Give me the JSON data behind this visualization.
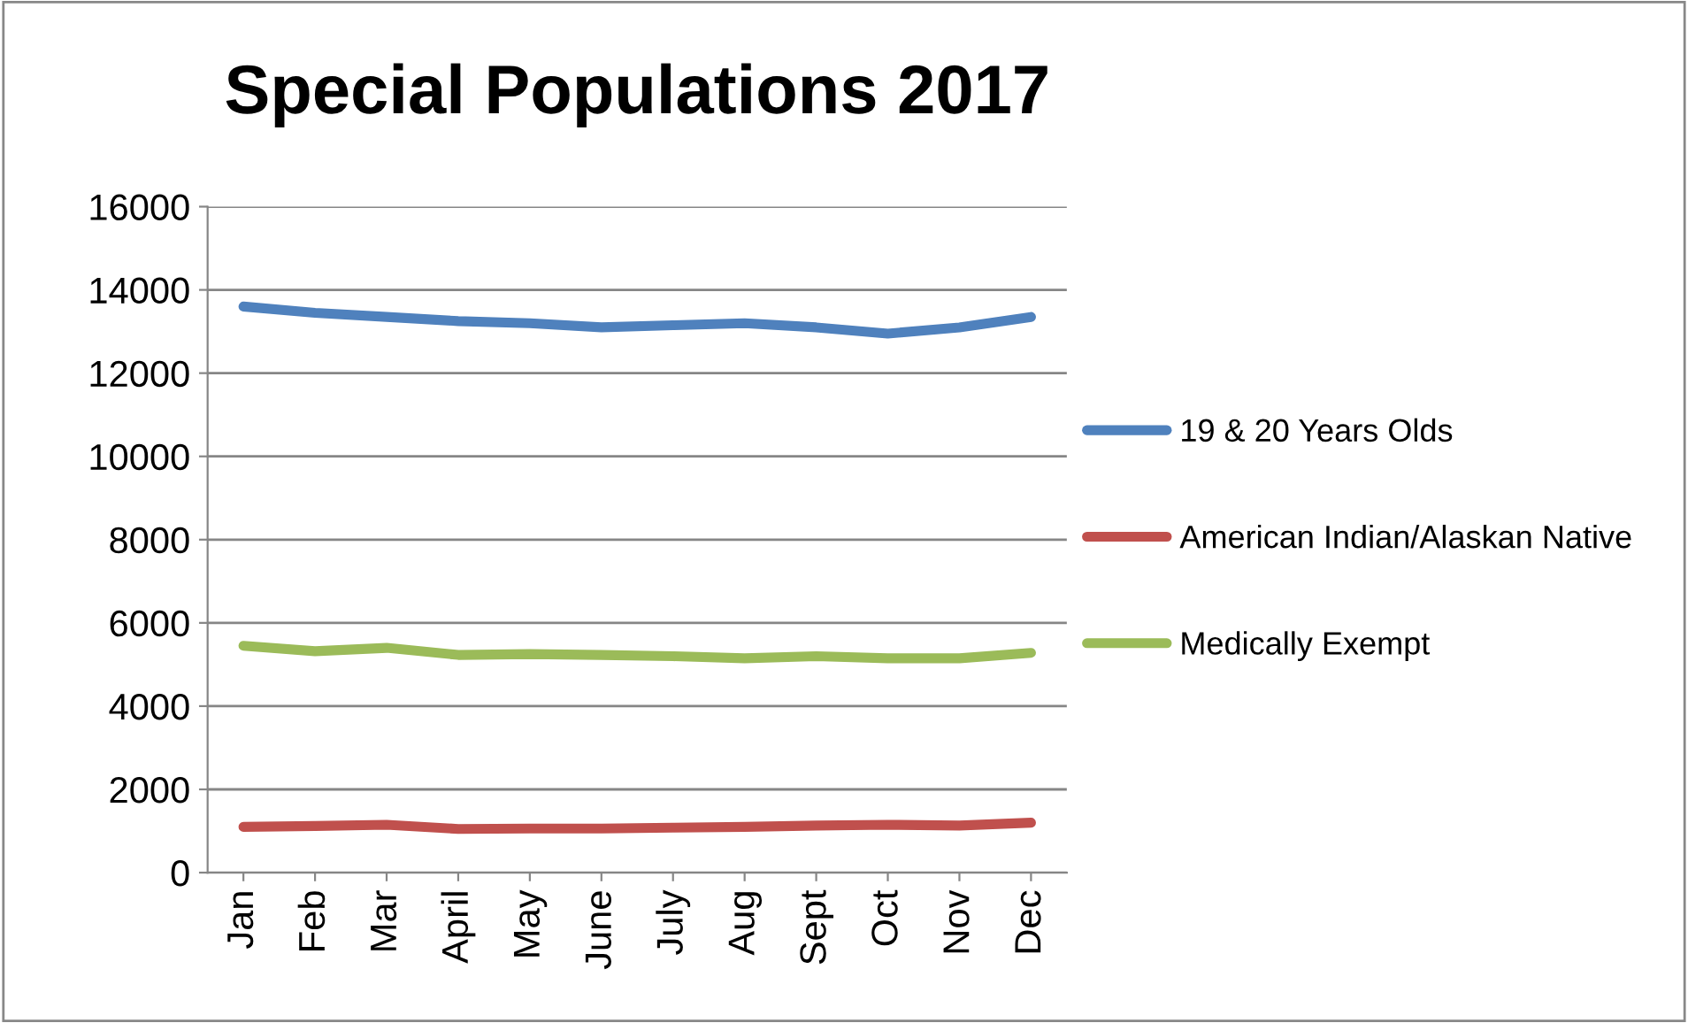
{
  "chart_data": {
    "type": "line",
    "title": "Special Populations 2017",
    "categories": [
      "Jan",
      "Feb",
      "Mar",
      "April",
      "May",
      "June",
      "July",
      "Aug",
      "Sept",
      "Oct",
      "Nov",
      "Dec"
    ],
    "series": [
      {
        "name": "19 & 20 Years Olds",
        "color": "#4f81bd",
        "values": [
          13600,
          13450,
          13350,
          13250,
          13200,
          13100,
          13150,
          13200,
          13100,
          12950,
          13100,
          13350
        ]
      },
      {
        "name": "American Indian/Alaskan Native",
        "color": "#c0504d",
        "values": [
          1100,
          1120,
          1150,
          1050,
          1060,
          1060,
          1080,
          1100,
          1130,
          1150,
          1130,
          1200
        ]
      },
      {
        "name": "Medically Exempt",
        "color": "#9bbb59",
        "values": [
          5450,
          5320,
          5400,
          5230,
          5250,
          5230,
          5200,
          5150,
          5200,
          5150,
          5150,
          5280
        ]
      }
    ],
    "ylim": [
      0,
      16000
    ],
    "yticks": [
      0,
      2000,
      4000,
      6000,
      8000,
      10000,
      12000,
      14000,
      16000
    ],
    "grid": "y",
    "legend": "right",
    "marker": "none",
    "line_style": "solid"
  }
}
